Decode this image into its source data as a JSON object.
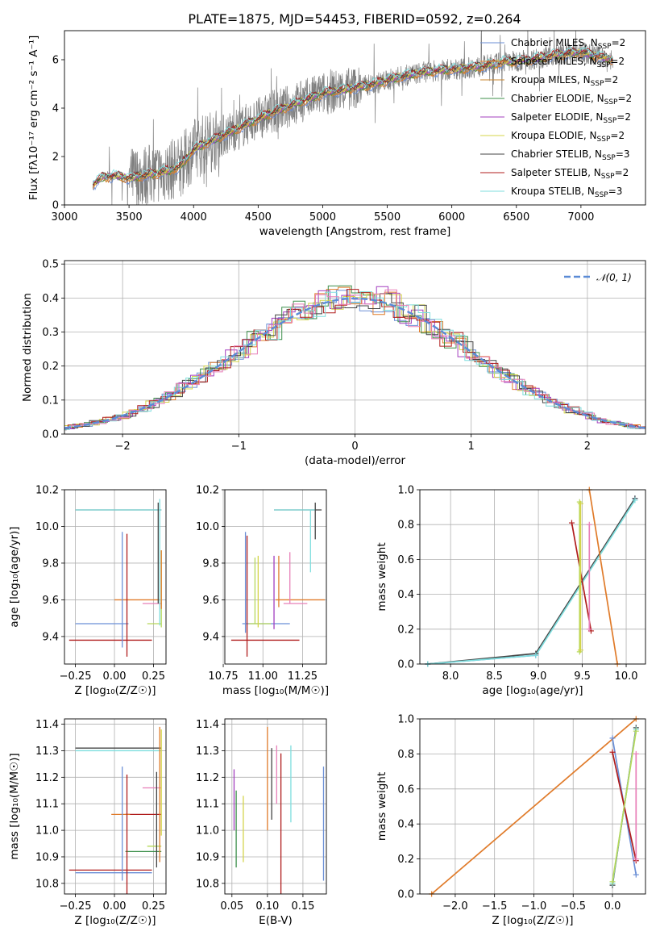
{
  "title": "PLATE=1875, MJD=54453, FIBERID=0592, z=0.264",
  "colors": {
    "chabrier_miles": "#6b8fd6",
    "salpeter_miles": "#e07b2a",
    "kroupa_miles": "#c8862c",
    "chabrier_elodie": "#3c8f4a",
    "salpeter_elodie": "#a33fbf",
    "kroupa_elodie": "#d4d44a",
    "chabrier_stelib": "#444444",
    "salpeter_stelib": "#b01c1c",
    "kroupa_stelib": "#7fdede",
    "pink": "#e87fb8",
    "lime": "#b6d85a",
    "data_gray": "#7f7f7f",
    "gauss": "#5b8bd6"
  },
  "chart_data": [
    {
      "type": "line",
      "title": "PLATE=1875, MJD=54453, FIBERID=0592, z=0.264",
      "xlabel": "wavelength [Angstrom, rest frame]",
      "ylabel": "Flux [fλ10⁻¹⁷ erg cm⁻² s⁻¹ A⁻¹]",
      "xlim": [
        3000,
        7500
      ],
      "ylim": [
        0,
        7.2
      ],
      "xticks": [
        "3000",
        "3500",
        "4000",
        "4500",
        "5000",
        "5500",
        "6000",
        "6500",
        "7000"
      ],
      "yticks": [
        "0",
        "2",
        "4",
        "6"
      ],
      "legend_position": "top-right",
      "legend": [
        {
          "label": "Chabrier MILES, N",
          "sub": "SSP",
          "tail": "=2",
          "color": "chabrier_miles"
        },
        {
          "label": "Salpeter MILES, N",
          "sub": "SSP",
          "tail": "=2",
          "color": "salpeter_miles"
        },
        {
          "label": "Kroupa MILES, N",
          "sub": "SSP",
          "tail": "=2",
          "color": "kroupa_miles"
        },
        {
          "label": "Chabrier ELODIE, N",
          "sub": "SSP",
          "tail": "=2",
          "color": "chabrier_elodie"
        },
        {
          "label": "Salpeter ELODIE, N",
          "sub": "SSP",
          "tail": "=2",
          "color": "salpeter_elodie"
        },
        {
          "label": "Kroupa ELODIE, N",
          "sub": "SSP",
          "tail": "=2",
          "color": "kroupa_elodie"
        },
        {
          "label": "Chabrier STELIB, N",
          "sub": "SSP",
          "tail": "=3",
          "color": "chabrier_stelib"
        },
        {
          "label": "Salpeter STELIB, N",
          "sub": "SSP",
          "tail": "=2",
          "color": "salpeter_stelib"
        },
        {
          "label": "Kroupa STELIB, N",
          "sub": "SSP",
          "tail": "=3",
          "color": "kroupa_stelib"
        }
      ],
      "model_continuum": [
        [
          3220,
          0.85
        ],
        [
          3300,
          1.15
        ],
        [
          3400,
          1.2
        ],
        [
          3500,
          1.1
        ],
        [
          3600,
          1.2
        ],
        [
          3700,
          1.3
        ],
        [
          3800,
          1.4
        ],
        [
          3900,
          1.6
        ],
        [
          4000,
          2.3
        ],
        [
          4200,
          2.8
        ],
        [
          4400,
          3.3
        ],
        [
          4600,
          3.8
        ],
        [
          4800,
          4.2
        ],
        [
          5000,
          4.6
        ],
        [
          5200,
          4.8
        ],
        [
          5400,
          5.0
        ],
        [
          5600,
          5.3
        ],
        [
          5800,
          5.5
        ],
        [
          6000,
          5.6
        ],
        [
          6200,
          5.7
        ],
        [
          6400,
          5.9
        ],
        [
          6600,
          6.0
        ],
        [
          6800,
          6.2
        ],
        [
          7000,
          6.3
        ],
        [
          7250,
          6.0
        ]
      ]
    },
    {
      "type": "line",
      "xlabel": "(data-model)/error",
      "ylabel": "Normed distribution",
      "xlim": [
        -2.5,
        2.5
      ],
      "ylim": [
        0,
        0.51
      ],
      "xticks": [
        "−2",
        "−1",
        "0",
        "1",
        "2"
      ],
      "yticks": [
        "0.0",
        "0.1",
        "0.2",
        "0.3",
        "0.4",
        "0.5"
      ],
      "legend": [
        {
          "label": "𝒩(0, 1)",
          "color": "gauss",
          "style": "dashed"
        }
      ],
      "series_colors": [
        "chabrier_miles",
        "salpeter_miles",
        "chabrier_elodie",
        "salpeter_elodie",
        "kroupa_elodie",
        "chabrier_stelib",
        "salpeter_stelib",
        "kroupa_stelib",
        "pink"
      ]
    },
    {
      "type": "scatter",
      "xlabel": "Z [log₁₀(Z/Z☉)]",
      "ylabel": "age  [log₁₀(age/yr)]",
      "xlim": [
        -0.32,
        0.33
      ],
      "ylim": [
        9.25,
        10.2
      ],
      "xticks": [
        "−0.25",
        "0.00",
        "0.25"
      ],
      "yticks": [
        "9.4",
        "9.6",
        "9.8",
        "10.0",
        "10.2"
      ],
      "hbars": [
        {
          "x0": -0.25,
          "x1": 0.3,
          "y": 10.09,
          "color": "chabrier_stelib"
        },
        {
          "x0": -0.25,
          "x1": 0.3,
          "y": 10.09,
          "color": "kroupa_stelib"
        },
        {
          "x0": 0.0,
          "x1": 0.29,
          "y": 9.6,
          "color": "salpeter_miles"
        },
        {
          "x0": 0.18,
          "x1": 0.3,
          "y": 9.58,
          "color": "pink"
        },
        {
          "x0": -0.25,
          "x1": 0.09,
          "y": 9.47,
          "color": "chabrier_miles"
        },
        {
          "x0": 0.21,
          "x1": 0.3,
          "y": 9.47,
          "color": "lime"
        },
        {
          "x0": -0.29,
          "x1": 0.24,
          "y": 9.38,
          "color": "salpeter_stelib"
        }
      ],
      "vbars": [
        {
          "x": 0.05,
          "y0": 9.34,
          "y1": 9.97,
          "color": "chabrier_miles"
        },
        {
          "x": 0.08,
          "y0": 9.29,
          "y1": 9.96,
          "color": "salpeter_stelib"
        },
        {
          "x": 0.28,
          "y0": 9.58,
          "y1": 10.13,
          "color": "chabrier_stelib"
        },
        {
          "x": 0.29,
          "y0": 9.46,
          "y1": 10.15,
          "color": "kroupa_stelib"
        },
        {
          "x": 0.3,
          "y0": 9.45,
          "y1": 9.87,
          "color": "lime"
        },
        {
          "x": 0.3,
          "y0": 9.55,
          "y1": 9.87,
          "color": "salpeter_miles"
        }
      ]
    },
    {
      "type": "scatter",
      "xlabel": "mass [log₁₀(M/M☉)]",
      "xlim": [
        10.76,
        11.4
      ],
      "ylim": [
        9.25,
        10.2
      ],
      "xticks": [
        "10.75",
        "11.00",
        "11.25"
      ],
      "yticks": [
        "9.4",
        "9.6",
        "9.8",
        "10.0",
        "10.2"
      ],
      "hbars": [
        {
          "x0": 11.07,
          "x1": 11.37,
          "y": 10.09,
          "color": "chabrier_stelib"
        },
        {
          "x0": 11.07,
          "x1": 11.33,
          "y": 10.09,
          "color": "kroupa_stelib"
        },
        {
          "x0": 11.08,
          "x1": 11.39,
          "y": 9.6,
          "color": "salpeter_miles"
        },
        {
          "x0": 11.13,
          "x1": 11.28,
          "y": 9.58,
          "color": "pink"
        },
        {
          "x0": 10.87,
          "x1": 11.17,
          "y": 9.47,
          "color": "chabrier_miles"
        },
        {
          "x0": 10.91,
          "x1": 11.05,
          "y": 9.47,
          "color": "lime"
        },
        {
          "x0": 10.8,
          "x1": 11.23,
          "y": 9.38,
          "color": "salpeter_stelib"
        }
      ],
      "vbars": [
        {
          "x": 10.89,
          "y0": 9.42,
          "y1": 9.97,
          "color": "chabrier_miles"
        },
        {
          "x": 10.9,
          "y0": 9.29,
          "y1": 9.95,
          "color": "salpeter_stelib"
        },
        {
          "x": 10.95,
          "y0": 9.47,
          "y1": 9.83,
          "color": "lime"
        },
        {
          "x": 10.97,
          "y0": 9.45,
          "y1": 9.84,
          "color": "kroupa_elodie"
        },
        {
          "x": 11.07,
          "y0": 9.44,
          "y1": 9.84,
          "color": "salpeter_elodie"
        },
        {
          "x": 11.1,
          "y0": 9.56,
          "y1": 9.84,
          "color": "salpeter_miles"
        },
        {
          "x": 11.17,
          "y0": 9.58,
          "y1": 9.86,
          "color": "pink"
        },
        {
          "x": 11.3,
          "y0": 9.75,
          "y1": 10.09,
          "color": "kroupa_stelib"
        },
        {
          "x": 11.33,
          "y0": 9.93,
          "y1": 10.13,
          "color": "chabrier_stelib"
        }
      ]
    },
    {
      "type": "line",
      "xlabel": "age  [log₁₀(age/yr)]",
      "ylabel": "mass weight",
      "xlim": [
        7.65,
        10.22
      ],
      "ylim": [
        0,
        1.0
      ],
      "xticks": [
        "8.0",
        "8.5",
        "9.0",
        "9.5",
        "10.0"
      ],
      "yticks": [
        "0.0",
        "0.2",
        "0.4",
        "0.6",
        "0.8",
        "1.0"
      ],
      "series": [
        {
          "color": "chabrier_miles",
          "points": [
            [
              7.74,
              0.0
            ],
            [
              8.97,
              0.05
            ],
            [
              10.1,
              0.95
            ]
          ]
        },
        {
          "color": "chabrier_stelib",
          "points": [
            [
              7.74,
              0.0
            ],
            [
              8.97,
              0.06
            ],
            [
              10.1,
              0.95
            ]
          ]
        },
        {
          "color": "kroupa_stelib",
          "points": [
            [
              7.74,
              0.0
            ],
            [
              8.97,
              0.05
            ],
            [
              10.1,
              0.94
            ]
          ]
        },
        {
          "color": "salpeter_miles",
          "points": [
            [
              9.58,
              1.0
            ],
            [
              9.9,
              0.0
            ]
          ]
        },
        {
          "color": "salpeter_stelib",
          "points": [
            [
              9.38,
              0.81
            ],
            [
              9.6,
              0.19
            ]
          ]
        },
        {
          "color": "lime",
          "points": [
            [
              9.47,
              0.93
            ],
            [
              9.47,
              0.07
            ]
          ]
        },
        {
          "color": "kroupa_elodie",
          "points": [
            [
              9.48,
              0.92
            ],
            [
              9.48,
              0.08
            ]
          ]
        },
        {
          "color": "pink",
          "points": [
            [
              9.58,
              0.8
            ],
            [
              9.58,
              0.2
            ]
          ]
        }
      ]
    },
    {
      "type": "scatter",
      "xlabel": "Z [log₁₀(Z/Z☉)]",
      "ylabel": "mass [log₁₀(M/M☉)]",
      "xlim": [
        -0.32,
        0.33
      ],
      "ylim": [
        10.76,
        11.42
      ],
      "xticks": [
        "−0.25",
        "0.00",
        "0.25"
      ],
      "yticks": [
        "10.8",
        "10.9",
        "11.0",
        "11.1",
        "11.2",
        "11.3",
        "11.4"
      ],
      "hbars": [
        {
          "x0": -0.25,
          "x1": 0.3,
          "y": 11.31,
          "color": "chabrier_stelib"
        },
        {
          "x0": -0.25,
          "x1": 0.3,
          "y": 11.3,
          "color": "kroupa_stelib"
        },
        {
          "x0": 0.18,
          "x1": 0.3,
          "y": 11.16,
          "color": "pink"
        },
        {
          "x0": 0.07,
          "x1": 0.3,
          "y": 11.06,
          "color": "salpeter_stelib"
        },
        {
          "x0": -0.02,
          "x1": 0.1,
          "y": 11.06,
          "color": "salpeter_miles"
        },
        {
          "x0": 0.21,
          "x1": 0.3,
          "y": 10.94,
          "color": "lime"
        },
        {
          "x0": 0.07,
          "x1": 0.3,
          "y": 10.92,
          "color": "chabrier_elodie"
        },
        {
          "x0": -0.29,
          "x1": 0.24,
          "y": 10.85,
          "color": "salpeter_stelib"
        },
        {
          "x0": -0.25,
          "x1": 0.24,
          "y": 10.84,
          "color": "chabrier_miles"
        }
      ],
      "vbars": [
        {
          "x": 0.05,
          "y0": 10.81,
          "y1": 11.24,
          "color": "chabrier_miles"
        },
        {
          "x": 0.08,
          "y0": 10.76,
          "y1": 11.21,
          "color": "salpeter_stelib"
        },
        {
          "x": 0.27,
          "y0": 10.86,
          "y1": 11.22,
          "color": "chabrier_stelib"
        },
        {
          "x": 0.29,
          "y0": 10.88,
          "y1": 11.39,
          "color": "salpeter_miles"
        },
        {
          "x": 0.3,
          "y0": 10.98,
          "y1": 11.38,
          "color": "kroupa_elodie"
        }
      ]
    },
    {
      "type": "scatter",
      "xlabel": "E(B-V)",
      "xlim": [
        0.04,
        0.183
      ],
      "ylim": [
        10.76,
        11.42
      ],
      "xticks": [
        "0.05",
        "0.10",
        "0.15"
      ],
      "yticks": [
        "10.8",
        "10.9",
        "11.0",
        "11.1",
        "11.2",
        "11.3",
        "11.4"
      ],
      "vbars": [
        {
          "x": 0.053,
          "y0": 11.0,
          "y1": 11.23,
          "color": "salpeter_elodie"
        },
        {
          "x": 0.056,
          "y0": 10.86,
          "y1": 11.15,
          "color": "chabrier_elodie"
        },
        {
          "x": 0.066,
          "y0": 10.88,
          "y1": 11.13,
          "color": "kroupa_elodie"
        },
        {
          "x": 0.1,
          "y0": 11.0,
          "y1": 11.39,
          "color": "salpeter_miles"
        },
        {
          "x": 0.106,
          "y0": 11.04,
          "y1": 11.31,
          "color": "chabrier_stelib"
        },
        {
          "x": 0.113,
          "y0": 11.1,
          "y1": 11.32,
          "color": "pink"
        },
        {
          "x": 0.119,
          "y0": 10.76,
          "y1": 11.29,
          "color": "salpeter_stelib"
        },
        {
          "x": 0.133,
          "y0": 11.03,
          "y1": 11.32,
          "color": "kroupa_stelib"
        },
        {
          "x": 0.179,
          "y0": 10.81,
          "y1": 11.24,
          "color": "chabrier_miles"
        }
      ]
    },
    {
      "type": "line",
      "xlabel": "Z [log₁₀(Z/Z☉)]",
      "ylabel": "mass weight",
      "xlim": [
        -2.45,
        0.42
      ],
      "ylim": [
        0,
        1.0
      ],
      "xticks": [
        "−2.0",
        "−1.5",
        "−1.0",
        "−0.5",
        "0.0"
      ],
      "yticks": [
        "0.0",
        "0.2",
        "0.4",
        "0.6",
        "0.8",
        "1.0"
      ],
      "series": [
        {
          "color": "salpeter_miles",
          "points": [
            [
              -2.3,
              0.0
            ],
            [
              0.3,
              1.0
            ]
          ]
        },
        {
          "color": "chabrier_miles",
          "points": [
            [
              0.0,
              0.89
            ],
            [
              0.3,
              0.11
            ]
          ]
        },
        {
          "color": "chabrier_stelib",
          "points": [
            [
              0.0,
              0.05
            ],
            [
              0.3,
              0.95
            ]
          ]
        },
        {
          "color": "kroupa_stelib",
          "points": [
            [
              0.0,
              0.06
            ],
            [
              0.3,
              0.94
            ]
          ]
        },
        {
          "color": "salpeter_stelib",
          "points": [
            [
              0.0,
              0.81
            ],
            [
              0.3,
              0.19
            ]
          ]
        },
        {
          "color": "lime",
          "points": [
            [
              0.0,
              0.07
            ],
            [
              0.3,
              0.93
            ]
          ]
        },
        {
          "color": "pink",
          "points": [
            [
              0.3,
              0.8
            ],
            [
              0.3,
              0.2
            ]
          ]
        }
      ]
    }
  ]
}
